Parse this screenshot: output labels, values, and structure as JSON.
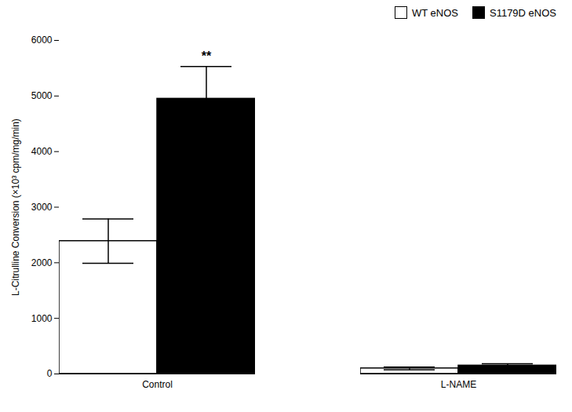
{
  "chart_data": {
    "type": "bar",
    "categories": [
      "Control",
      "L-NAME"
    ],
    "series": [
      {
        "name": "WT eNOS",
        "color": "#ffffff",
        "values": [
          2390,
          100
        ],
        "errors": [
          400,
          25
        ]
      },
      {
        "name": "S1179D eNOS",
        "color": "#000000",
        "values": [
          4950,
          150
        ],
        "errors": [
          580,
          35
        ]
      }
    ],
    "ylabel": "L-Citrulline Conversion (×10³ cpm/mg/min)",
    "ylim": [
      0,
      6000
    ],
    "yticks": [
      0,
      1000,
      2000,
      3000,
      4000,
      5000,
      6000
    ],
    "legend": "upper right",
    "annotations": [
      {
        "text": "**",
        "category": "Control",
        "series": "S1179D eNOS"
      }
    ]
  }
}
